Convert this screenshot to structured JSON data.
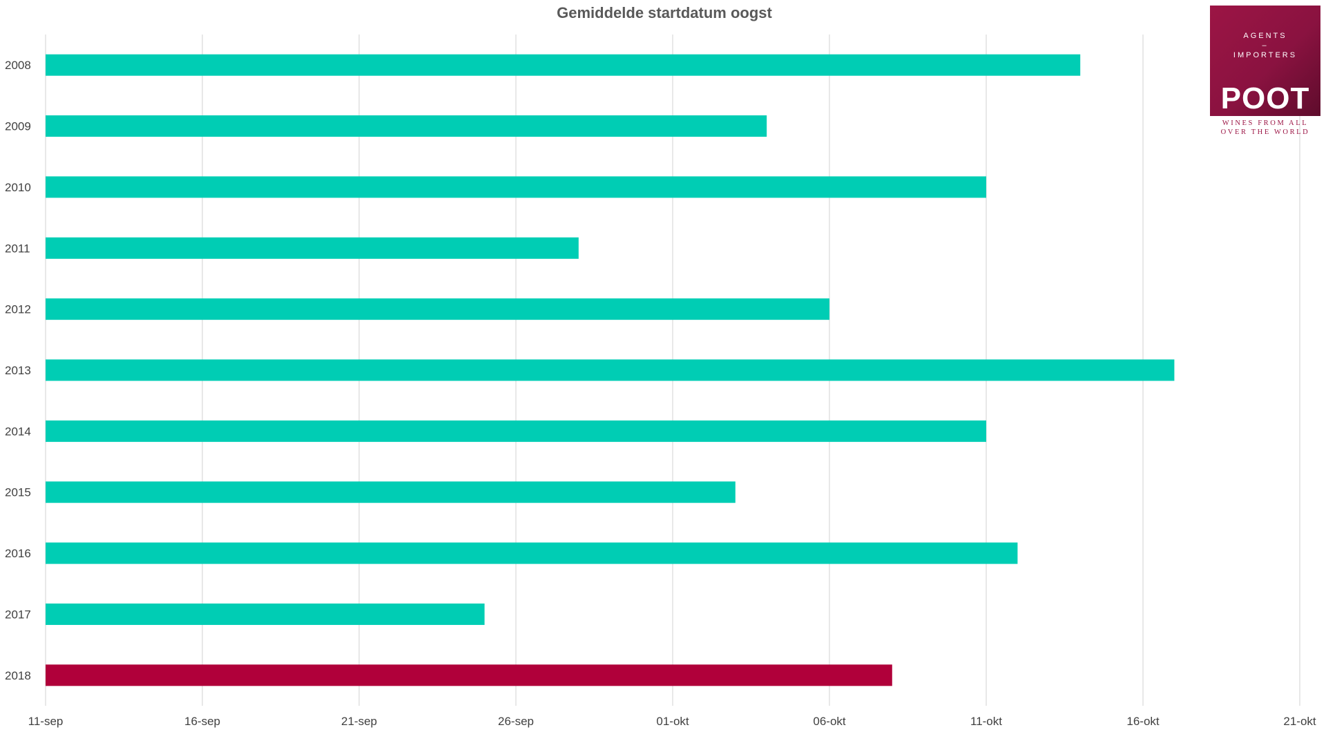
{
  "chart_data": {
    "type": "bar",
    "orientation": "horizontal",
    "title": "Gemiddelde startdatum oogst",
    "xlabel": "",
    "ylabel": "",
    "x_ticks": [
      "11-sep",
      "16-sep",
      "21-sep",
      "26-sep",
      "01-okt",
      "06-okt",
      "11-okt",
      "16-okt",
      "21-okt"
    ],
    "xlim": [
      "11-sep",
      "21-okt"
    ],
    "categories": [
      "2008",
      "2009",
      "2010",
      "2011",
      "2012",
      "2013",
      "2014",
      "2015",
      "2016",
      "2017",
      "2018"
    ],
    "values": [
      "14-okt",
      "04-okt",
      "11-okt",
      "28-sep",
      "06-okt",
      "17-okt",
      "11-okt",
      "03-okt",
      "12-okt",
      "25-sep",
      "08-okt"
    ],
    "bar_colors": [
      "#00cdb4",
      "#00cdb4",
      "#00cdb4",
      "#00cdb4",
      "#00cdb4",
      "#00cdb4",
      "#00cdb4",
      "#00cdb4",
      "#00cdb4",
      "#00cdb4",
      "#b0003a"
    ],
    "grid": "vertical",
    "legend": "none"
  },
  "logo": {
    "line1": "AGENTS",
    "line2": "–",
    "line3": "IMPORTERS",
    "brand": "POOT",
    "tagline1": "WINES FROM ALL",
    "tagline2": "OVER THE WORLD"
  }
}
